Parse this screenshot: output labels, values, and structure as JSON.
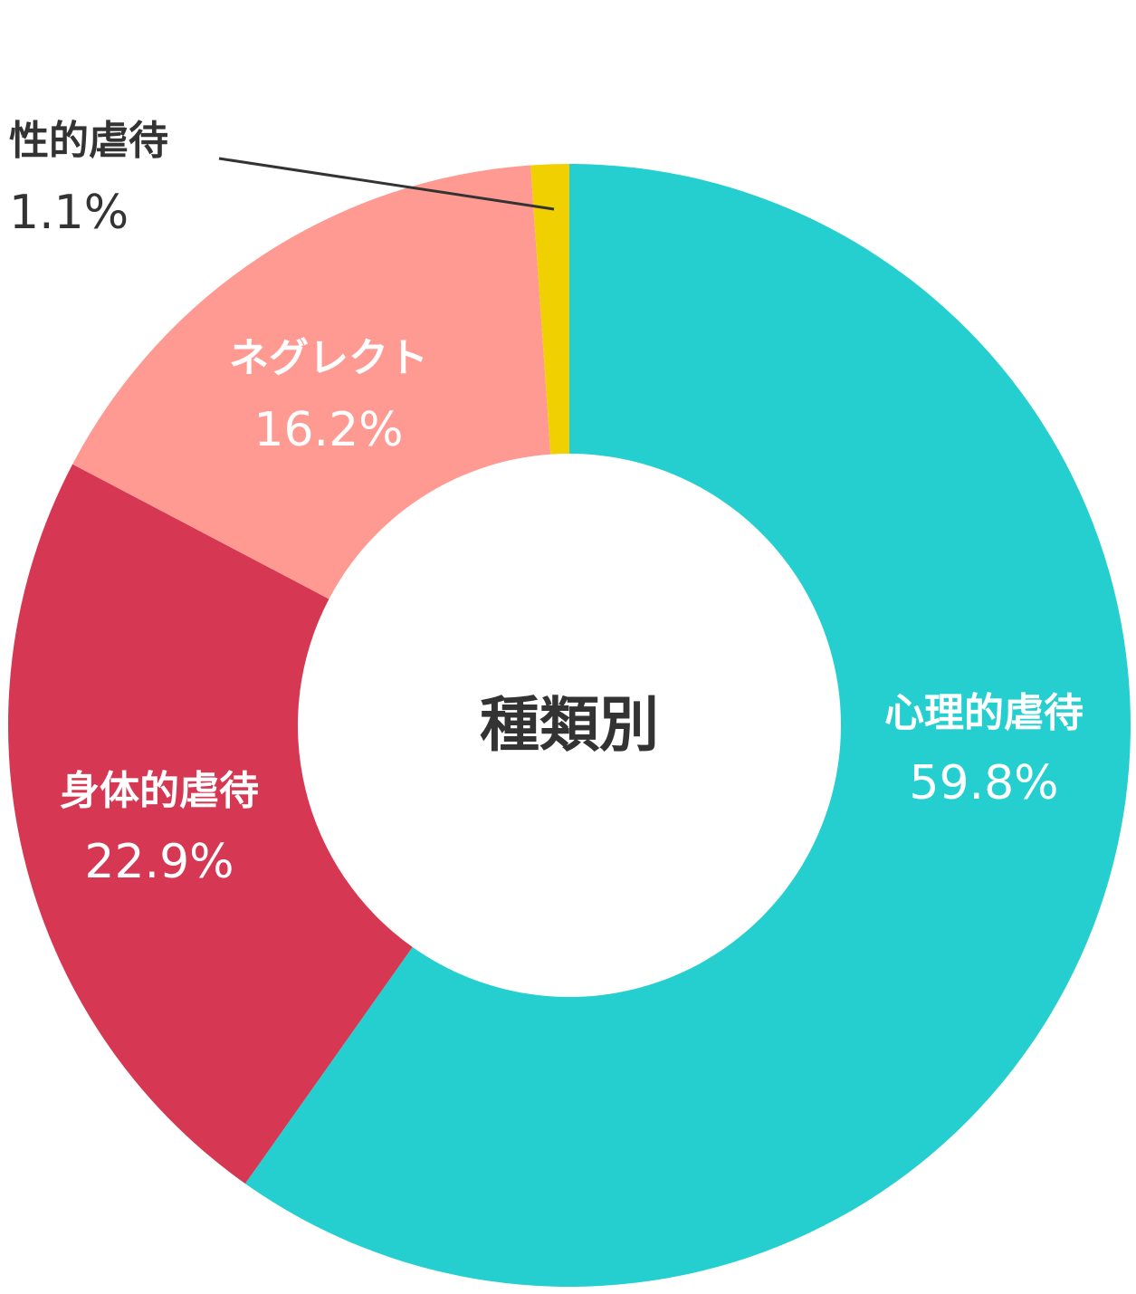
{
  "chart_data": {
    "type": "donut",
    "title": "種類別",
    "categories": [
      "心理的虐待",
      "身体的虐待",
      "ネグレクト",
      "性的虐待"
    ],
    "values": [
      59.8,
      22.9,
      16.2,
      1.1
    ],
    "value_labels": [
      "59.8%",
      "22.9%",
      "16.2%",
      "1.1%"
    ],
    "colors": [
      "#26cfcf",
      "#d63752",
      "#ff9a93",
      "#f0d000"
    ]
  }
}
